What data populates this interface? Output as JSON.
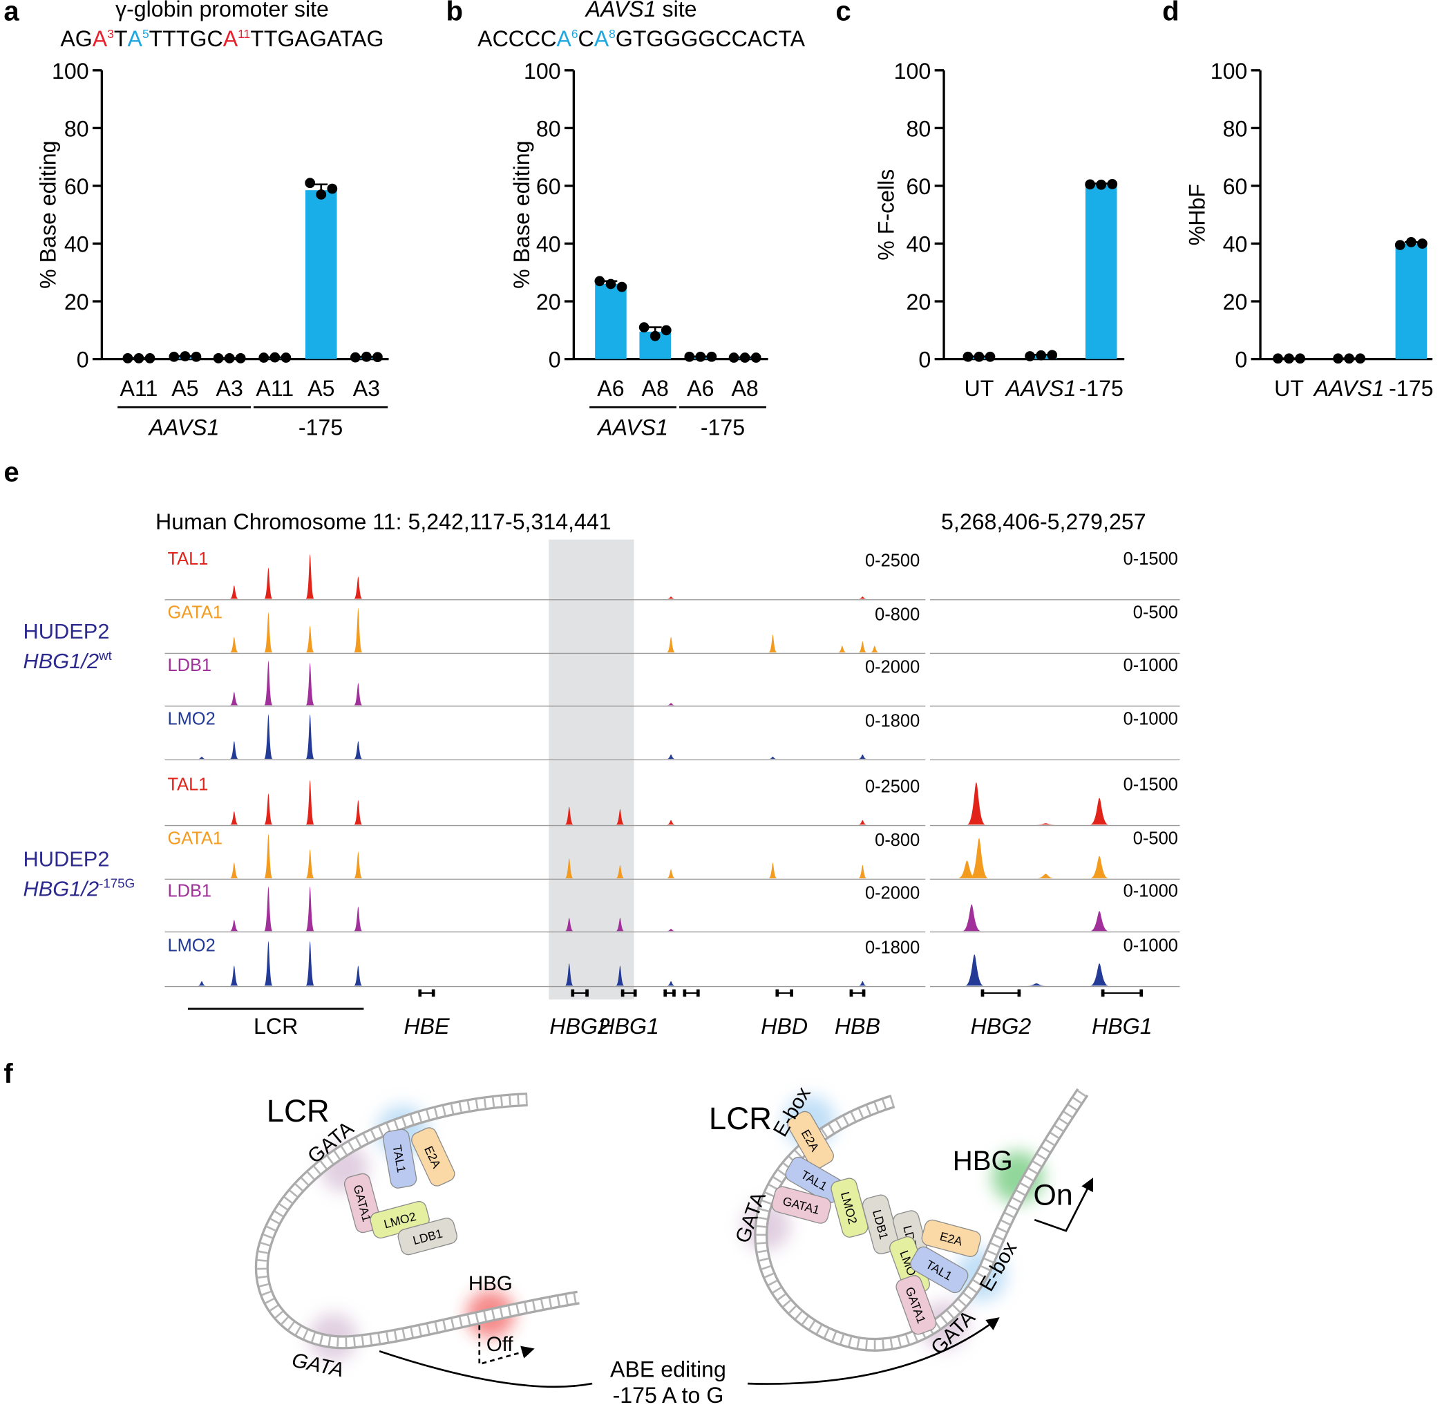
{
  "panel_labels": [
    "a",
    "b",
    "c",
    "d",
    "e",
    "f"
  ],
  "chart_data": [
    {
      "type": "bar",
      "title": [
        {
          "text": "γ-globin promoter site"
        }
      ],
      "sequence": [
        {
          "text": "AG"
        },
        {
          "text": "A",
          "sup": "3",
          "color": "#e8212e"
        },
        {
          "text": "T"
        },
        {
          "text": "A",
          "sup": "5",
          "color": "#1fa8e0"
        },
        {
          "text": "TTTGC"
        },
        {
          "text": "A",
          "sup": "11",
          "color": "#e8212e"
        },
        {
          "text": "TTGAGATAG"
        }
      ],
      "ylabel": "% Base editing",
      "categories": [
        "A11",
        "A5",
        "A3",
        "A11",
        "A5",
        "A3"
      ],
      "groups": [
        {
          "label": "AAVS1",
          "style": "italic",
          "size": 3
        },
        {
          "label": "-175",
          "style": "normal",
          "size": 3
        }
      ],
      "values": [
        0.3,
        0.8,
        0.3,
        0.5,
        58.5,
        0.7
      ],
      "errors": [
        0.1,
        0.2,
        0.1,
        0.1,
        2,
        0.1
      ],
      "points": [
        [
          0.3,
          0.3,
          0.3
        ],
        [
          0.8,
          1,
          0.8
        ],
        [
          0.3,
          0.3,
          0.3
        ],
        [
          0.5,
          0.6,
          0.5
        ],
        [
          61,
          57,
          59
        ],
        [
          0.6,
          0.8,
          0.7
        ]
      ],
      "color": "#1aaee8",
      "point_color": "#000000",
      "ylim": [
        0,
        100
      ],
      "yticks": [
        0,
        20,
        40,
        60,
        80,
        100
      ]
    },
    {
      "type": "bar",
      "title": [
        {
          "text": "AAVS1",
          "style": "italic"
        },
        {
          "text": " site"
        }
      ],
      "sequence": [
        {
          "text": "ACCCC"
        },
        {
          "text": "A",
          "sup": "6",
          "color": "#1fa8e0"
        },
        {
          "text": "C"
        },
        {
          "text": "A",
          "sup": "8",
          "color": "#1fa8e0"
        },
        {
          "text": "GTGGGGCCACTA"
        }
      ],
      "ylabel": "% Base editing",
      "categories": [
        "A6",
        "A8",
        "A6",
        "A8"
      ],
      "groups": [
        {
          "label": "AAVS1",
          "style": "italic",
          "size": 2
        },
        {
          "label": "-175",
          "style": "normal",
          "size": 2
        }
      ],
      "values": [
        26,
        9.5,
        0.8,
        0.5
      ],
      "errors": [
        1,
        1.5,
        0.1,
        0.1
      ],
      "points": [
        [
          27,
          26,
          25
        ],
        [
          11,
          8,
          10
        ],
        [
          0.8,
          0.8,
          0.8
        ],
        [
          0.5,
          0.5,
          0.5
        ]
      ],
      "color": "#1aaee8",
      "point_color": "#000000",
      "ylim": [
        0,
        100
      ],
      "yticks": [
        0,
        20,
        40,
        60,
        80,
        100
      ]
    },
    {
      "type": "bar",
      "ylabel": "% F-cells",
      "categories": [
        "UT",
        "AAVS1",
        "-175"
      ],
      "category_styles": [
        "normal",
        "italic",
        "normal"
      ],
      "values": [
        0.8,
        1.2,
        60.5
      ],
      "errors": [
        0.1,
        0.3,
        0.3
      ],
      "points": [
        [
          0.8,
          0.8,
          0.8
        ],
        [
          1,
          1.3,
          1.4
        ],
        [
          60.5,
          60.4,
          60.6
        ]
      ],
      "color": "#1aaee8",
      "point_color": "#000000",
      "ylim": [
        0,
        100
      ],
      "yticks": [
        0,
        20,
        40,
        60,
        80,
        100
      ]
    },
    {
      "type": "bar",
      "ylabel": "%HbF",
      "categories": [
        "UT",
        "AAVS1",
        "-175"
      ],
      "category_styles": [
        "normal",
        "italic",
        "normal"
      ],
      "values": [
        0.2,
        0.2,
        40
      ],
      "errors": [
        0.05,
        0.05,
        0.5
      ],
      "points": [
        [
          0.2,
          0.2,
          0.2
        ],
        [
          0.2,
          0.2,
          0.2
        ],
        [
          39.5,
          40.5,
          40
        ]
      ],
      "color": "#1aaee8",
      "point_color": "#000000",
      "ylim": [
        0,
        100
      ],
      "yticks": [
        0,
        20,
        40,
        60,
        80,
        100
      ]
    }
  ],
  "tracks": {
    "title": "Human Chromosome 11: 5,242,117-5,314,441",
    "zoom_title": "5,268,406-5,279,257",
    "xlim": [
      5242117,
      5314441
    ],
    "zoom_xlim": [
      5268406,
      5279257
    ],
    "highlight": [
      5278637,
      5286733
    ],
    "highlight_color": "#e1e2e4",
    "samples": [
      {
        "name": "HUDEP2",
        "genotype": "HBG1/2",
        "sup": "wt",
        "color": "#2d2a8f",
        "tracks": [
          {
            "name": "TAL1",
            "color": "#e2231a",
            "range_label": "0-2500",
            "ylim": [
              0,
              2500
            ],
            "zoom_range_label": "0-1500",
            "zoom_ylim": [
              0,
              1500
            ],
            "peaks": [
              [
                5248717,
                750
              ],
              [
                5251973,
                1750
              ],
              [
                5255933,
                2500
              ],
              [
                5260509,
                1250
              ],
              [
                5290253,
                125
              ],
              [
                5308469,
                125
              ]
            ],
            "zoom_peaks": []
          },
          {
            "name": "GATA1",
            "color": "#f39b1f",
            "range_label": "0-800",
            "ylim": [
              0,
              800
            ],
            "zoom_range_label": "0-500",
            "zoom_ylim": [
              0,
              500
            ],
            "peaks": [
              [
                5248717,
                280
              ],
              [
                5251973,
                720
              ],
              [
                5255933,
                480
              ],
              [
                5260509,
                800
              ],
              [
                5290253,
                280
              ],
              [
                5299933,
                320
              ],
              [
                5306533,
                120
              ],
              [
                5308469,
                200
              ],
              [
                5309613,
                120
              ]
            ],
            "zoom_peaks": []
          },
          {
            "name": "LDB1",
            "color": "#a2309a",
            "range_label": "0-2000",
            "ylim": [
              0,
              2000
            ],
            "zoom_range_label": "0-1000",
            "zoom_ylim": [
              0,
              1000
            ],
            "peaks": [
              [
                5248717,
                600
              ],
              [
                5251973,
                2000
              ],
              [
                5255933,
                1900
              ],
              [
                5260509,
                1000
              ],
              [
                5290253,
                100
              ]
            ],
            "zoom_peaks": []
          },
          {
            "name": "LMO2",
            "color": "#233a96",
            "range_label": "0-1800",
            "ylim": [
              0,
              1800
            ],
            "zoom_range_label": "0-1000",
            "zoom_ylim": [
              0,
              1000
            ],
            "peaks": [
              [
                5245637,
                90
              ],
              [
                5248717,
                720
              ],
              [
                5251973,
                1800
              ],
              [
                5255933,
                1800
              ],
              [
                5260509,
                720
              ],
              [
                5290253,
                180
              ],
              [
                5299933,
                90
              ],
              [
                5308469,
                180
              ]
            ],
            "zoom_peaks": []
          }
        ]
      },
      {
        "name": "HUDEP2",
        "genotype": "HBG1/2",
        "sup": "-175G",
        "color": "#2d2a8f",
        "tracks": [
          {
            "name": "TAL1",
            "color": "#e2231a",
            "range_label": "0-2500",
            "ylim": [
              0,
              2500
            ],
            "zoom_range_label": "0-1500",
            "zoom_ylim": [
              0,
              1500
            ],
            "peaks": [
              [
                5248717,
                750
              ],
              [
                5251973,
                1750
              ],
              [
                5255933,
                2500
              ],
              [
                5260509,
                1375
              ],
              [
                5280573,
                1000
              ],
              [
                5285413,
                875
              ],
              [
                5290253,
                250
              ],
              [
                5308469,
                250
              ]
            ],
            "zoom_peaks": [
              [
                5270416,
                1425
              ],
              [
                5273431,
                45
              ],
              [
                5275763,
                900
              ]
            ]
          },
          {
            "name": "GATA1",
            "color": "#f39b1f",
            "range_label": "0-800",
            "ylim": [
              0,
              800
            ],
            "zoom_range_label": "0-500",
            "zoom_ylim": [
              0,
              500
            ],
            "peaks": [
              [
                5248717,
                280
              ],
              [
                5251973,
                800
              ],
              [
                5255933,
                520
              ],
              [
                5260509,
                480
              ],
              [
                5280573,
                360
              ],
              [
                5285413,
                240
              ],
              [
                5290253,
                160
              ],
              [
                5299933,
                280
              ],
              [
                5308469,
                240
              ]
            ],
            "zoom_peaks": [
              [
                5270014,
                200
              ],
              [
                5270537,
                450
              ],
              [
                5273431,
                50
              ],
              [
                5275763,
                250
              ]
            ]
          },
          {
            "name": "LDB1",
            "color": "#a2309a",
            "range_label": "0-2000",
            "ylim": [
              0,
              2000
            ],
            "zoom_range_label": "0-1000",
            "zoom_ylim": [
              0,
              1000
            ],
            "peaks": [
              [
                5248717,
                500
              ],
              [
                5251973,
                2000
              ],
              [
                5255933,
                2000
              ],
              [
                5260509,
                1100
              ],
              [
                5280573,
                600
              ],
              [
                5285413,
                600
              ],
              [
                5290253,
                100
              ]
            ],
            "zoom_peaks": [
              [
                5270215,
                600
              ],
              [
                5275763,
                450
              ]
            ]
          },
          {
            "name": "LMO2",
            "color": "#233a96",
            "range_label": "0-1800",
            "ylim": [
              0,
              1800
            ],
            "zoom_range_label": "0-1000",
            "zoom_ylim": [
              0,
              1000
            ],
            "peaks": [
              [
                5245637,
                180
              ],
              [
                5248717,
                810
              ],
              [
                5251973,
                1800
              ],
              [
                5255933,
                1800
              ],
              [
                5260509,
                810
              ],
              [
                5280573,
                900
              ],
              [
                5285413,
                810
              ],
              [
                5290253,
                180
              ],
              [
                5308469,
                180
              ]
            ],
            "zoom_peaks": [
              [
                5270336,
                700
              ],
              [
                5273029,
                50
              ],
              [
                5275763,
                500
              ]
            ]
          }
        ]
      }
    ],
    "region": {
      "label": "LCR",
      "start": 5244317,
      "end": 5261037
    },
    "genes": [
      {
        "label": "HBE",
        "start": 5266229,
        "end": 5267813
      },
      {
        "label": "HBG2",
        "start": 5280749,
        "end": 5282421
      },
      {
        "label": "HBG1",
        "start": 5285501,
        "end": 5286997
      },
      {
        "label": null,
        "start": 5289549,
        "end": 5290693
      },
      {
        "label": null,
        "start": 5291397,
        "end": 5292981
      },
      {
        "label": "HBD",
        "start": 5300197,
        "end": 5301869
      },
      {
        "label": "HBB",
        "start": 5307237,
        "end": 5308733
      }
    ],
    "zoom_genes": [
      {
        "label": "HBG2",
        "start": 5270617,
        "end": 5272346
      },
      {
        "label": "HBG1",
        "start": 5275843,
        "end": 5277652
      }
    ]
  },
  "diagram": {
    "protein_colors": {
      "GATA1": "#ecc9d4",
      "TAL1": "#b9c9f0",
      "E2A": "#fbd9a6",
      "LMO2": "#e4ef9f",
      "LDB1": "#dedbd3"
    },
    "before": {
      "locus": "LCR",
      "gene": "HBG",
      "state": "Off",
      "sites": [
        "GATA",
        "GATA"
      ],
      "proteins": [
        "GATA1",
        "TAL1",
        "E2A",
        "LMO2",
        "LDB1"
      ]
    },
    "after": {
      "locus": "LCR",
      "gene": "HBG",
      "state": "On",
      "sites": [
        "E-box",
        "GATA",
        "E-box",
        "GATA"
      ],
      "proteins": [
        "E2A",
        "TAL1",
        "GATA1",
        "LMO2",
        "LDB1",
        "LDB1",
        "LMO2",
        "E2A",
        "TAL1",
        "GATA1"
      ]
    },
    "edit": [
      "ABE editing",
      "-175 A to G"
    ]
  }
}
